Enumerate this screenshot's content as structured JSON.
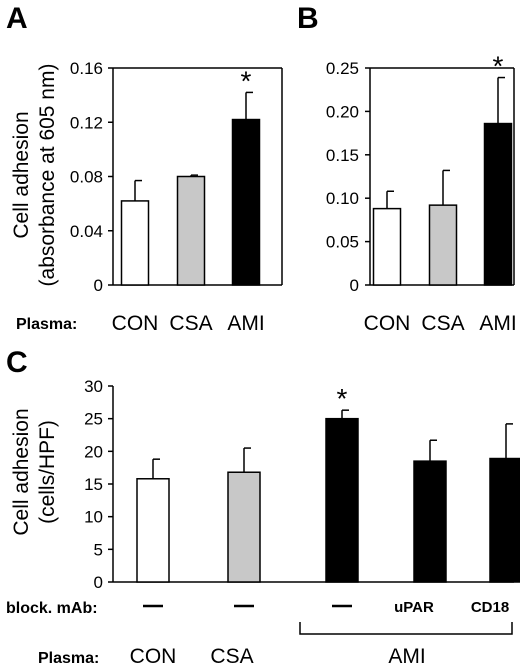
{
  "chart_data": [
    {
      "panel": "A",
      "type": "bar",
      "categories": [
        "CON",
        "CSA",
        "AMI"
      ],
      "values": [
        0.062,
        0.08,
        0.122
      ],
      "errors": [
        0.015,
        0.001,
        0.02
      ],
      "significant": [
        false,
        false,
        true
      ],
      "fills": [
        "#ffffff",
        "#c8c8c8",
        "#000000"
      ],
      "ylim": [
        0,
        0.16
      ],
      "yticks": [
        "0",
        "0.04",
        "0.08",
        "0.12",
        "0.16"
      ],
      "ylabel_line1": "Cell adhesion",
      "ylabel_line2": "(absorbance at 605 nm)",
      "row_label": "Plasma:",
      "significance_marker": "*"
    },
    {
      "panel": "B",
      "type": "bar",
      "categories": [
        "CON",
        "CSA",
        "AMI"
      ],
      "values": [
        0.088,
        0.092,
        0.186
      ],
      "errors": [
        0.02,
        0.04,
        0.053
      ],
      "significant": [
        false,
        false,
        true
      ],
      "fills": [
        "#ffffff",
        "#c8c8c8",
        "#000000"
      ],
      "ylim": [
        0,
        0.25
      ],
      "yticks": [
        "0",
        "0.05",
        "0.10",
        "0.15",
        "0.20",
        "0.25"
      ],
      "significance_marker": "*"
    },
    {
      "panel": "C",
      "type": "bar",
      "categories": [
        "CON",
        "CSA",
        "AMI",
        "AMI",
        "AMI"
      ],
      "values": [
        15.8,
        16.8,
        25.0,
        18.5,
        18.9
      ],
      "errors": [
        3.0,
        3.7,
        1.3,
        3.2,
        5.3
      ],
      "significant": [
        false,
        false,
        true,
        false,
        false
      ],
      "fills": [
        "#ffffff",
        "#c8c8c8",
        "#000000",
        "#000000",
        "#000000"
      ],
      "blocking_mab": [
        "—",
        "—",
        "—",
        "uPAR",
        "CD18"
      ],
      "ylim": [
        0,
        30
      ],
      "yticks": [
        "0",
        "5",
        "10",
        "15",
        "20",
        "25",
        "30"
      ],
      "ylabel_line1": "Cell adhesion",
      "ylabel_line2": "(cells/HPF)",
      "row_label_mab": "block. mAb:",
      "row_label_plasma": "Plasma:",
      "plasma_labels": [
        "CON",
        "CSA",
        "AMI"
      ],
      "significance_marker": "*"
    }
  ]
}
